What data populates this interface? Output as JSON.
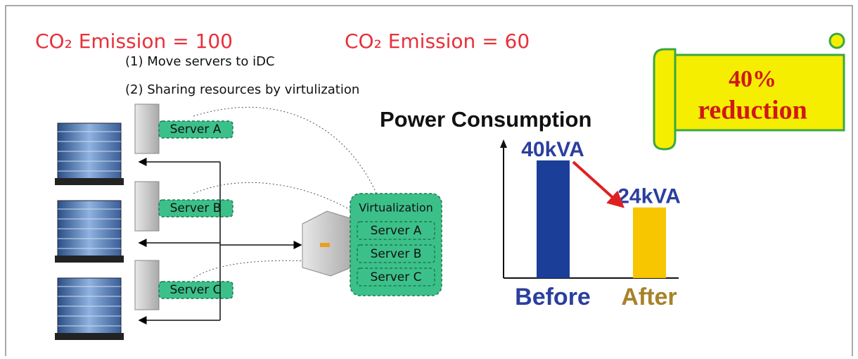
{
  "emissions": [
    "CO₂ Emission = 100",
    "CO₂ Emission = 60"
  ],
  "steps": [
    "(1)  Move servers to iDC",
    "(2)  Sharing resources by virtulization"
  ],
  "servers": [
    "Server A",
    "Server B",
    "Server C"
  ],
  "virtualization": {
    "title": "Virtualization",
    "servers": [
      "Server A",
      "Server B",
      "Server C"
    ]
  },
  "banner": [
    "40%",
    "reduction"
  ],
  "chart_data": {
    "type": "bar",
    "title": "Power Consumption",
    "categories": [
      "Before",
      "After"
    ],
    "values": [
      40,
      24
    ],
    "value_labels": [
      "40kVA",
      "24kVA"
    ],
    "colors": [
      "#1b3f99",
      "#f7c600"
    ],
    "label_colors": [
      "#2b3f9e",
      "#a8822a"
    ],
    "ylim": [
      0,
      45
    ]
  }
}
